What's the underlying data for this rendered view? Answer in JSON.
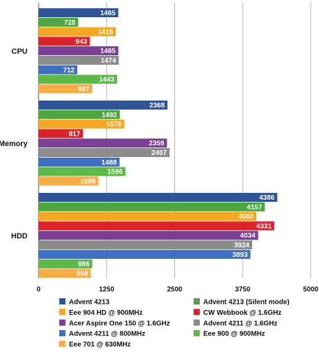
{
  "chart_data": {
    "type": "bar",
    "orientation": "horizontal",
    "categories": [
      "CPU",
      "Memory",
      "HDD"
    ],
    "xlim": [
      0,
      5000
    ],
    "x_ticks": [
      0,
      1250,
      2500,
      3750,
      5000
    ],
    "grid": true,
    "legend_position": "bottom",
    "series": [
      {
        "name": "Advent 4213",
        "color": "#2f5597",
        "values": [
          1465,
          2368,
          4386
        ]
      },
      {
        "name": "Advent 4213 (Silent mode)",
        "color": "#4ea640",
        "values": [
          728,
          1492,
          4157
        ]
      },
      {
        "name": "Eee 904 HD @  900MHz",
        "color": "#f5a623",
        "values": [
          1419,
          1576,
          4000
        ]
      },
      {
        "name": "CW Webbook @ 1.6GHz",
        "color": "#d9232d",
        "values": [
          943,
          817,
          4331
        ]
      },
      {
        "name": "Acer Aspire One 150 @ 1.6GHz",
        "color": "#7b3f98",
        "values": [
          1465,
          2359,
          4034
        ]
      },
      {
        "name": "Advent 4211 @ 1.6GHz",
        "color": "#8c8c8c",
        "values": [
          1474,
          2407,
          3924
        ]
      },
      {
        "name": "Advent 4211 @ 800MHz",
        "color": "#3e6fc2",
        "values": [
          712,
          1488,
          3893
        ]
      },
      {
        "name": "Eee 900 @ 900MHz",
        "color": "#5db84a",
        "values": [
          1443,
          1596,
          986
        ]
      },
      {
        "name": "Eee 701 @ 630MHz",
        "color": "#f7ad45",
        "values": [
          987,
          1098,
          958
        ]
      }
    ]
  }
}
